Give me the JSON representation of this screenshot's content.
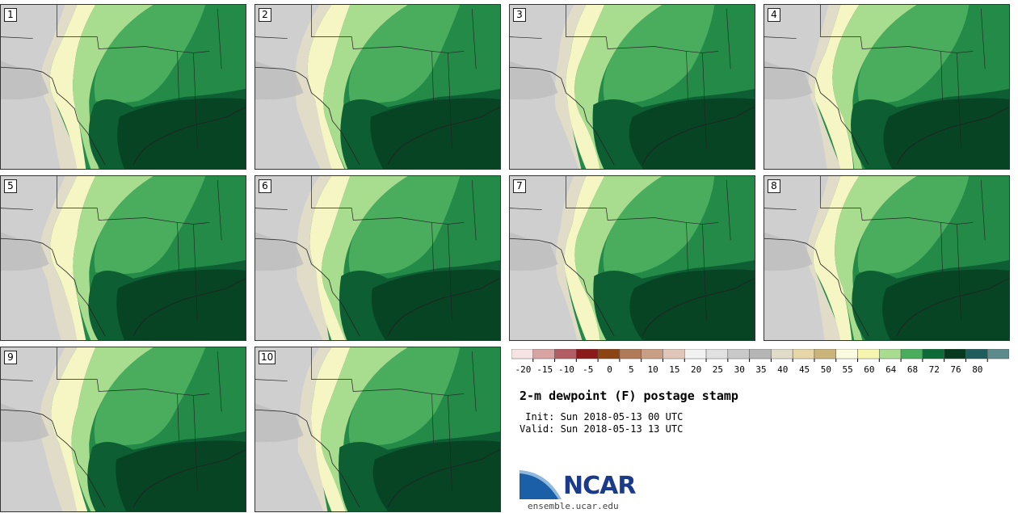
{
  "panels": [
    {
      "label": "1"
    },
    {
      "label": "2"
    },
    {
      "label": "3"
    },
    {
      "label": "4"
    },
    {
      "label": "5"
    },
    {
      "label": "6"
    },
    {
      "label": "7"
    },
    {
      "label": "8"
    },
    {
      "label": "9"
    },
    {
      "label": "10"
    }
  ],
  "map_colors": {
    "land_gray": "#cfcfcf",
    "land_tan": "#e0dcc8",
    "pale_yellow": "#f6f5c4",
    "light_green": "#a8dc8e",
    "mid_green": "#4aad5e",
    "green": "#248a47",
    "dark_green": "#0d5e33",
    "darkest_green": "#074424",
    "border_line": "#222222"
  },
  "colorbar": {
    "ticks": [
      "-20",
      "-15",
      "-10",
      "-5",
      "0",
      "5",
      "10",
      "15",
      "20",
      "25",
      "30",
      "35",
      "40",
      "45",
      "50",
      "55",
      "60",
      "64",
      "68",
      "72",
      "76",
      "80"
    ],
    "colors": [
      "#f6e4e4",
      "#d7a3a3",
      "#b15d63",
      "#8b1a1a",
      "#8b4513",
      "#b07958",
      "#c89e85",
      "#e0c6b8",
      "#f2f2f2",
      "#e1e1e1",
      "#c9c9c9",
      "#b5b5b5",
      "#e1dcc9",
      "#e6d6a8",
      "#cbb47a",
      "#fbfbe2",
      "#f5f5b0",
      "#a8dc8e",
      "#4aad5e",
      "#0d6b38",
      "#07391f",
      "#1f5d5d",
      "#5d8a8a"
    ]
  },
  "title": "2-m dewpoint (F) postage stamp",
  "init": " Init: Sun 2018-05-13 00 UTC",
  "valid": "Valid: Sun 2018-05-13 13 UTC",
  "logo": {
    "text": "NCAR",
    "url": "ensemble.ucar.edu"
  }
}
